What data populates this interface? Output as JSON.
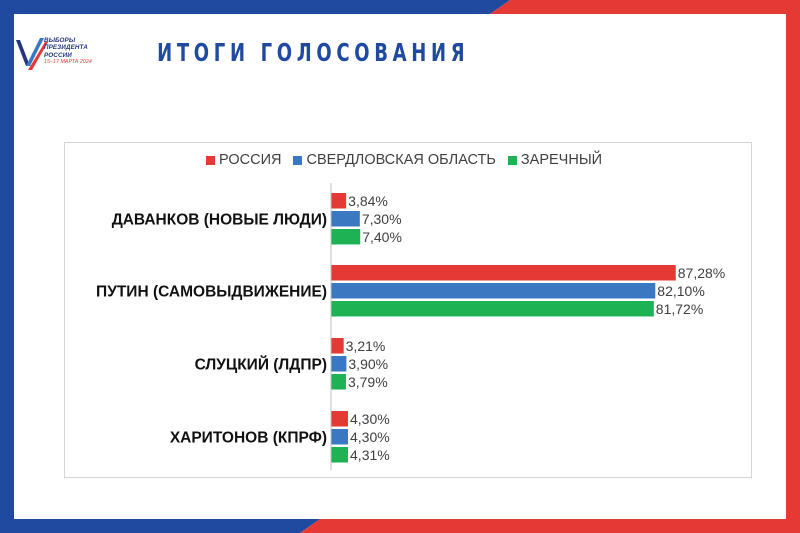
{
  "header": {
    "title": "ИТОГИ ГОЛОСОВАНИЯ",
    "logo_lines": [
      "ВЫБОРЫ",
      "ПРЕЗИДЕНТА",
      "РОССИИ"
    ],
    "logo_date": "15–17 МАРТА 2024"
  },
  "colors": {
    "frame_blue": "#1f4aa0",
    "frame_red": "#e53935",
    "series": [
      "#e53935",
      "#3a78c2",
      "#1db253"
    ]
  },
  "chart_data": {
    "type": "bar",
    "orientation": "horizontal",
    "categories": [
      "ДАВАНКОВ (НОВЫЕ ЛЮДИ)",
      "ПУТИН (САМОВЫДВИЖЕНИЕ)",
      "СЛУЦКИЙ (ЛДПР)",
      "ХАРИТОНОВ (КПРФ)"
    ],
    "series": [
      {
        "name": "РОССИЯ",
        "values": [
          3.84,
          87.28,
          3.21,
          4.3
        ],
        "labels": [
          "3,84%",
          "87,28%",
          "3,21%",
          "4,30%"
        ]
      },
      {
        "name": "СВЕРДЛОВСКАЯ ОБЛАСТЬ",
        "values": [
          7.3,
          82.1,
          3.9,
          4.3
        ],
        "labels": [
          "7,30%",
          "82,10%",
          "3,90%",
          "4,30%"
        ]
      },
      {
        "name": "ЗАРЕЧНЫЙ",
        "values": [
          7.4,
          81.72,
          3.79,
          4.31
        ],
        "labels": [
          "7,40%",
          "81,72%",
          "3,79%",
          "4,31%"
        ]
      }
    ],
    "xlim": [
      0,
      100
    ],
    "legend_position": "top",
    "grid": false
  }
}
